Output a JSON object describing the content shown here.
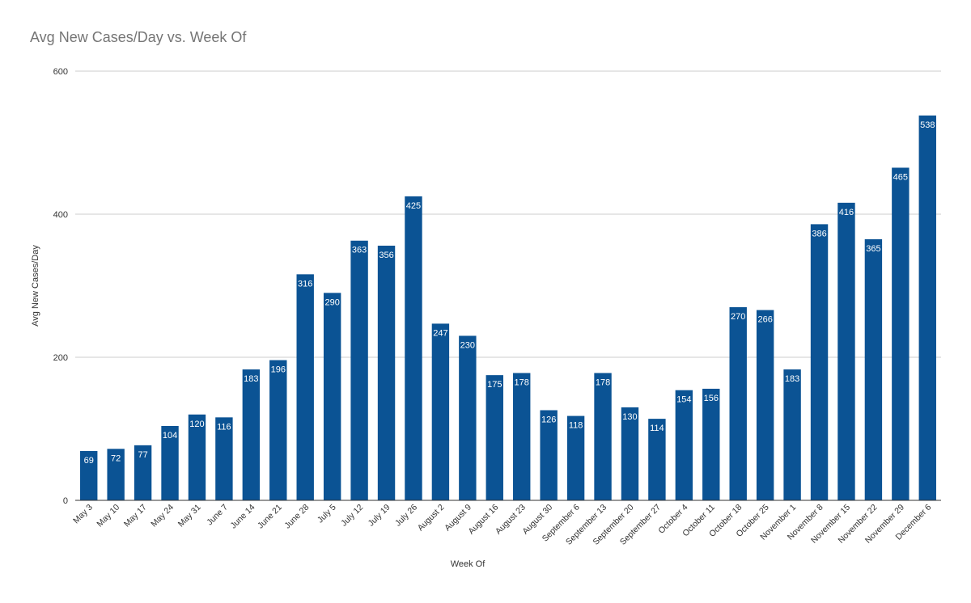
{
  "chart_data": {
    "type": "bar",
    "title": "Avg New Cases/Day vs. Week Of",
    "xlabel": "Week Of",
    "ylabel": "Avg New Cases/Day",
    "ylim": [
      0,
      600
    ],
    "yticks": [
      0,
      200,
      400,
      600
    ],
    "grid": true,
    "legend": "none",
    "colors": {
      "bar": "#0b5394",
      "grid": "#cccccc",
      "axis": "#333333",
      "label": "#ffffff",
      "title": "#757575"
    },
    "categories": [
      "May 3",
      "May 10",
      "May 17",
      "May 24",
      "May 31",
      "June 7",
      "June 14",
      "June 21",
      "June 28",
      "July 5",
      "July 12",
      "July 19",
      "July 26",
      "August 2",
      "August 9",
      "August 16",
      "August 23",
      "August 30",
      "September 6",
      "September 13",
      "September 20",
      "September 27",
      "October 4",
      "October 11",
      "October 18",
      "October 25",
      "November 1",
      "November 8",
      "November 15",
      "November 22",
      "November 29",
      "December 6"
    ],
    "values": [
      69,
      72,
      77,
      104,
      120,
      116,
      183,
      196,
      316,
      290,
      363,
      356,
      425,
      247,
      230,
      175,
      178,
      126,
      118,
      178,
      130,
      114,
      154,
      156,
      270,
      266,
      183,
      386,
      416,
      365,
      465,
      538
    ]
  }
}
